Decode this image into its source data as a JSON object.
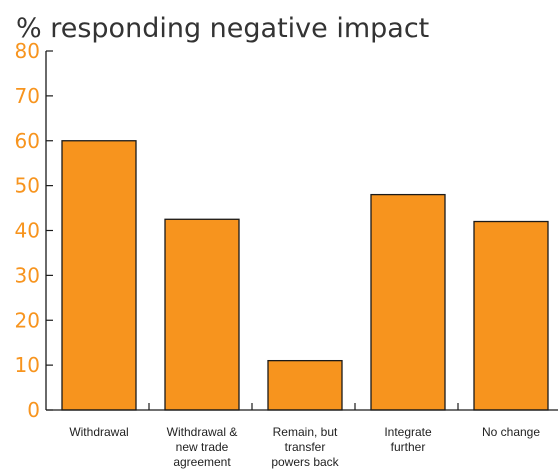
{
  "chart_data": {
    "type": "bar",
    "title": "% responding negative impact",
    "xlabel": "",
    "ylabel": "",
    "categories": [
      [
        "Withdrawal"
      ],
      [
        "Withdrawal &",
        "new trade",
        "agreement"
      ],
      [
        "Remain, but",
        "transfer",
        "powers back"
      ],
      [
        "Integrate",
        "further"
      ],
      [
        "No change"
      ]
    ],
    "values": [
      60,
      42.5,
      11,
      48,
      42
    ],
    "ylim": [
      0,
      80
    ],
    "yticks": [
      0,
      10,
      20,
      30,
      40,
      50,
      60,
      70,
      80
    ],
    "grid": false,
    "legend": "none",
    "colors": {
      "bar_fill": "#F7941E",
      "bar_stroke": "#1A1A1A",
      "tick_label": "#F7941E",
      "axis": "#1A1A1A",
      "title": "#333333"
    }
  }
}
